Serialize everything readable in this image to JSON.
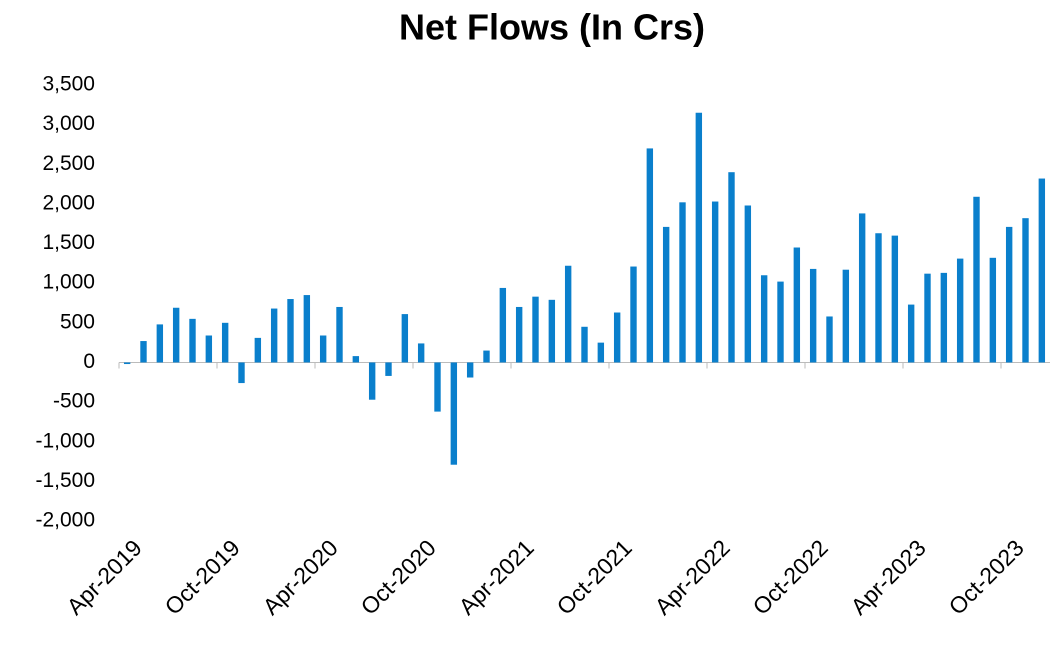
{
  "chart_data": {
    "type": "bar",
    "title": "Net Flows (In Crs)",
    "categories": [
      "Apr-2019",
      null,
      null,
      null,
      null,
      null,
      "Oct-2019",
      null,
      null,
      null,
      null,
      null,
      "Apr-2020",
      null,
      null,
      null,
      null,
      null,
      "Oct-2020",
      null,
      null,
      null,
      null,
      null,
      "Apr-2021",
      null,
      null,
      null,
      null,
      null,
      "Oct-2021",
      null,
      null,
      null,
      null,
      null,
      "Apr-2022",
      null,
      null,
      null,
      null,
      null,
      "Oct-2022",
      null,
      null,
      null,
      null,
      null,
      "Apr-2023",
      null,
      null,
      null,
      null,
      null,
      "Oct-2023",
      null,
      null
    ],
    "values": [
      -20,
      270,
      480,
      690,
      550,
      340,
      500,
      -260,
      310,
      680,
      800,
      850,
      340,
      700,
      80,
      -470,
      -170,
      610,
      240,
      -620,
      -1290,
      -190,
      150,
      940,
      700,
      830,
      790,
      1220,
      450,
      250,
      630,
      1210,
      2700,
      1710,
      2020,
      3150,
      2030,
      2400,
      1980,
      1100,
      1020,
      1450,
      1180,
      580,
      1170,
      1880,
      1630,
      1600,
      730,
      1120,
      1130,
      1310,
      2090,
      1320,
      1710,
      1820,
      2320
    ],
    "color": "#0a7fcc",
    "ylim": [
      -2000,
      3500
    ],
    "yticks": [
      {
        "value": -2000,
        "label": "-2,000"
      },
      {
        "value": -1500,
        "label": "-1,500"
      },
      {
        "value": -1000,
        "label": "-1,000"
      },
      -500,
      0,
      500,
      {
        "value": 1000,
        "label": "1,000"
      },
      {
        "value": 1500,
        "label": "1,500"
      },
      {
        "value": 2000,
        "label": "2,000"
      },
      {
        "value": 2500,
        "label": "2,500"
      },
      {
        "value": 3000,
        "label": "3,000"
      },
      {
        "value": 3500,
        "label": "3,500"
      }
    ],
    "grid": false
  }
}
